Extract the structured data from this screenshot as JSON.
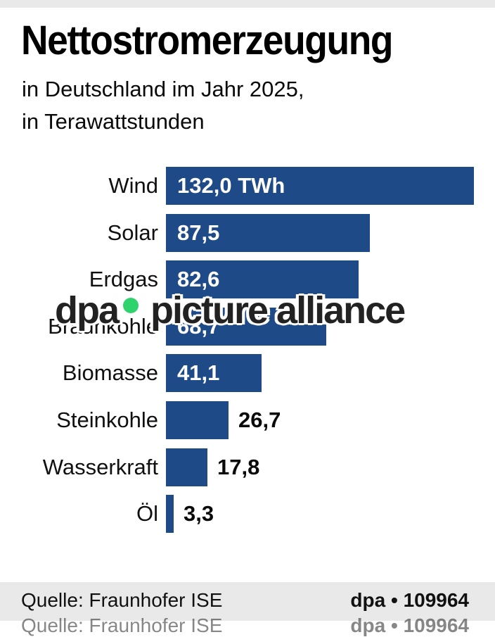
{
  "header": {
    "title": "Nettostromerzeugung",
    "subtitle_line1": "in Deutschland im Jahr 2025,",
    "subtitle_line2": "in Terawattstunden"
  },
  "chart_data": {
    "type": "bar",
    "orientation": "horizontal",
    "title": "Nettostromerzeugung",
    "subtitle": "in Deutschland im Jahr 2025, in Terawattstunden",
    "unit": "TWh",
    "categories": [
      "Wind",
      "Solar",
      "Erdgas",
      "Braunkohle",
      "Biomasse",
      "Steinkohle",
      "Wasserkraft",
      "Öl"
    ],
    "values": [
      132.0,
      87.5,
      82.6,
      68.7,
      41.1,
      26.7,
      17.8,
      3.3
    ],
    "value_labels": [
      "132,0 TWh",
      "87,5",
      "82,6",
      "68,7",
      "41,1",
      "26,7",
      "17,8",
      "3,3"
    ],
    "label_inside": [
      true,
      true,
      true,
      true,
      true,
      false,
      false,
      false
    ],
    "xlim": [
      0,
      132
    ],
    "grid": false,
    "legend": false,
    "bar_color": "#1E4B87",
    "value_color_inside": "#FFFFFF",
    "value_color_outside": "#0A0A0A",
    "source": "Quelle: Fraunhofer ISE"
  },
  "watermark": {
    "part1": "dpa",
    "part2": "picture alliance",
    "dot_color": "#2ED36E",
    "text_color": "#222222"
  },
  "footer": {
    "source": "Quelle: Fraunhofer ISE",
    "credit": "dpa • 109964"
  },
  "colors": {
    "bar_blue": "#1E4B87",
    "strip_gray": "#E9E9E9",
    "watermark_green": "#2ED36E"
  }
}
